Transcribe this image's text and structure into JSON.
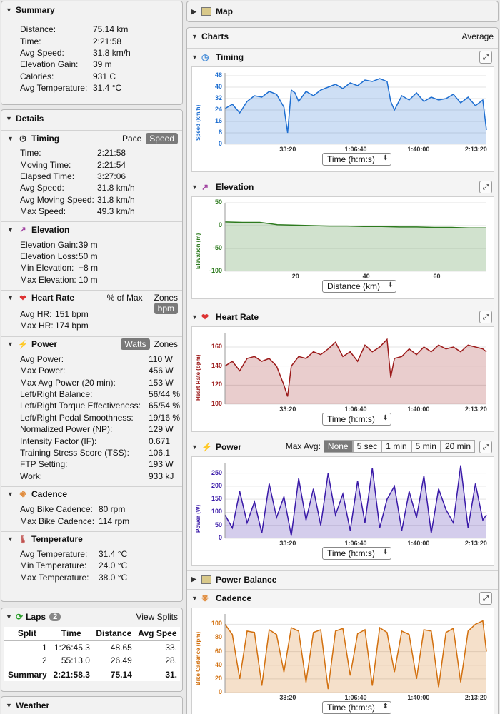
{
  "summary": {
    "title": "Summary",
    "rows": [
      [
        "Distance:",
        "75.14 km"
      ],
      [
        "Time:",
        "2:21:58"
      ],
      [
        "Avg Speed:",
        "31.8 km/h"
      ],
      [
        "Elevation Gain:",
        "39 m"
      ],
      [
        "Calories:",
        "931 C"
      ],
      [
        "Avg Temperature:",
        "31.4 °C"
      ]
    ]
  },
  "details": {
    "title": "Details",
    "timing": {
      "title": "Timing",
      "pace": "Pace",
      "speed": "Speed",
      "rows": [
        [
          "Time:",
          "2:21:58"
        ],
        [
          "Moving Time:",
          "2:21:54"
        ],
        [
          "Elapsed Time:",
          "3:27:06"
        ],
        [
          "Avg Speed:",
          "31.8 km/h"
        ],
        [
          "Avg Moving Speed:",
          "31.8 km/h"
        ],
        [
          "Max Speed:",
          "49.3 km/h"
        ]
      ]
    },
    "elevation": {
      "title": "Elevation",
      "rows": [
        [
          "Elevation Gain:",
          "39 m"
        ],
        [
          "Elevation Loss:",
          "50 m"
        ],
        [
          "Min Elevation:",
          "−8 m"
        ],
        [
          "Max Elevation:",
          "10 m"
        ]
      ]
    },
    "heart_rate": {
      "title": "Heart Rate",
      "pct": "% of Max",
      "zones": "Zones",
      "bpm": "bpm",
      "rows": [
        [
          "Avg HR:",
          "151 bpm"
        ],
        [
          "Max HR:",
          "174 bpm"
        ]
      ]
    },
    "power": {
      "title": "Power",
      "watts": "Watts",
      "zones": "Zones",
      "rows": [
        [
          "Avg Power:",
          "110 W"
        ],
        [
          "Max Power:",
          "456 W"
        ],
        [
          "Max Avg Power (20 min):",
          "153 W"
        ],
        [
          "Left/Right Balance:",
          "56/44 %"
        ],
        [
          "Left/Right Torque Effectiveness:",
          "65/54 %"
        ],
        [
          "Left/Right Pedal Smoothness:",
          "19/16 %"
        ],
        [
          "Normalized Power (NP):",
          "129 W"
        ],
        [
          "Intensity Factor (IF):",
          "0.671"
        ],
        [
          "Training Stress Score (TSS):",
          "106.1"
        ],
        [
          "FTP Setting:",
          "193 W"
        ],
        [
          "Work:",
          "933 kJ"
        ]
      ]
    },
    "cadence": {
      "title": "Cadence",
      "rows": [
        [
          "Avg Bike Cadence:",
          "80 rpm"
        ],
        [
          "Max Bike Cadence:",
          "114 rpm"
        ]
      ]
    },
    "temperature": {
      "title": "Temperature",
      "rows": [
        [
          "Avg Temperature:",
          "31.4 °C"
        ],
        [
          "Min Temperature:",
          "24.0 °C"
        ],
        [
          "Max Temperature:",
          "38.0 °C"
        ]
      ]
    }
  },
  "laps": {
    "title": "Laps",
    "count": "2",
    "view_splits": "View Splits",
    "headers": [
      "Split",
      "Time",
      "Distance",
      "Avg Spee"
    ],
    "rows": [
      [
        "1",
        "1:26:45.3",
        "48.65",
        "33."
      ],
      [
        "2",
        "55:13.0",
        "26.49",
        "28."
      ],
      [
        "Summary",
        "2:21:58.3",
        "75.14",
        "31."
      ]
    ]
  },
  "weather": {
    "title": "Weather"
  },
  "map": {
    "title": "Map"
  },
  "charts": {
    "title": "Charts",
    "average": "Average",
    "max_avg": "Max Avg:",
    "max_avg_options": [
      "None",
      "5 sec",
      "1 min",
      "5 min",
      "20 min"
    ],
    "power_balance": "Power Balance",
    "colors": {
      "speed": "#1f6fd1",
      "elevation": "#2d7a1e",
      "hr": "#9c1b1b",
      "power": "#3a1aa8",
      "cadence": "#d2700f"
    }
  },
  "chart_data": [
    {
      "type": "area",
      "title": "Timing",
      "ylabel": "Speed (km/h)",
      "xlabel": "Time (h:m:s)",
      "ylim": [
        0,
        50
      ],
      "yticks": [
        "48",
        "40",
        "32",
        "24",
        "16",
        "8",
        "0"
      ],
      "xticks": [
        "33:20",
        "1:06:40",
        "1:40:00",
        "2:13:20"
      ],
      "x": [
        0,
        240,
        480,
        720,
        960,
        1200,
        1440,
        1680,
        1920,
        2040,
        2160,
        2280,
        2400,
        2640,
        2880,
        3120,
        3360,
        3600,
        3840,
        4080,
        4320,
        4560,
        4800,
        5040,
        5280,
        5400,
        5520,
        5760,
        6000,
        6240,
        6480,
        6720,
        6960,
        7200,
        7440,
        7680,
        7920,
        8160,
        8400,
        8518
      ],
      "values": [
        25,
        28,
        22,
        30,
        34,
        33,
        37,
        35,
        26,
        8,
        38,
        36,
        30,
        37,
        34,
        38,
        40,
        42,
        39,
        43,
        41,
        45,
        44,
        46,
        44,
        30,
        24,
        34,
        31,
        36,
        30,
        33,
        31,
        32,
        35,
        29,
        33,
        27,
        31,
        10
      ]
    },
    {
      "type": "area",
      "title": "Elevation",
      "ylabel": "Elevation (m)",
      "xlabel": "Distance (km)",
      "ylim": [
        -100,
        50
      ],
      "yticks": [
        "50",
        "0",
        "-50",
        "-100"
      ],
      "xticks": [
        "20",
        "40",
        "60"
      ],
      "x": [
        0,
        5,
        10,
        15,
        20,
        25,
        30,
        35,
        40,
        45,
        50,
        55,
        60,
        65,
        70,
        75
      ],
      "values": [
        8,
        7,
        7,
        2,
        1,
        0,
        -1,
        -1,
        -2,
        -2,
        -3,
        -3,
        -4,
        -4,
        -5,
        -5
      ]
    },
    {
      "type": "area",
      "title": "Heart Rate",
      "ylabel": "Heart Rate (bpm)",
      "xlabel": "Time (h:m:s)",
      "ylim": [
        100,
        175
      ],
      "yticks": [
        "160",
        "140",
        "120",
        "100"
      ],
      "xticks": [
        "33:20",
        "1:06:40",
        "1:40:00",
        "2:13:20"
      ],
      "x": [
        0,
        240,
        480,
        720,
        960,
        1200,
        1440,
        1680,
        1920,
        2040,
        2160,
        2400,
        2640,
        2880,
        3120,
        3360,
        3600,
        3840,
        4080,
        4320,
        4560,
        4800,
        5040,
        5280,
        5400,
        5520,
        5760,
        6000,
        6240,
        6480,
        6720,
        6960,
        7200,
        7440,
        7680,
        7920,
        8160,
        8400,
        8518
      ],
      "values": [
        140,
        145,
        135,
        148,
        150,
        145,
        148,
        140,
        120,
        108,
        140,
        150,
        148,
        155,
        152,
        158,
        165,
        150,
        155,
        145,
        162,
        155,
        160,
        168,
        128,
        148,
        150,
        158,
        152,
        160,
        155,
        162,
        158,
        160,
        155,
        162,
        160,
        158,
        155
      ]
    },
    {
      "type": "area",
      "title": "Power",
      "ylabel": "Power (W)",
      "xlabel": "Time (h:m:s)",
      "ylim": [
        0,
        290
      ],
      "yticks": [
        "250",
        "200",
        "150",
        "100",
        "50",
        "0"
      ],
      "xticks": [
        "33:20",
        "1:06:40",
        "1:40:00",
        "2:13:20"
      ],
      "x": [
        0,
        240,
        480,
        720,
        960,
        1200,
        1440,
        1680,
        1920,
        2160,
        2400,
        2640,
        2880,
        3120,
        3360,
        3600,
        3840,
        4080,
        4320,
        4560,
        4800,
        5040,
        5280,
        5520,
        5760,
        6000,
        6240,
        6480,
        6720,
        6960,
        7200,
        7440,
        7680,
        7920,
        8160,
        8400,
        8518
      ],
      "values": [
        90,
        40,
        180,
        60,
        140,
        20,
        210,
        80,
        160,
        10,
        230,
        70,
        190,
        50,
        250,
        90,
        170,
        30,
        220,
        60,
        270,
        40,
        150,
        200,
        30,
        180,
        80,
        240,
        20,
        190,
        110,
        60,
        280,
        40,
        210,
        70,
        90
      ]
    },
    {
      "type": "area",
      "title": "Cadence",
      "ylabel": "Bike Cadence (rpm)",
      "xlabel": "Time (h:m:s)",
      "ylim": [
        0,
        115
      ],
      "yticks": [
        "100",
        "80",
        "60",
        "40",
        "20",
        "0"
      ],
      "xticks": [
        "33:20",
        "1:06:40",
        "1:40:00",
        "2:13:20"
      ],
      "x": [
        0,
        240,
        480,
        720,
        960,
        1200,
        1440,
        1680,
        1920,
        2160,
        2400,
        2640,
        2880,
        3120,
        3360,
        3600,
        3840,
        4080,
        4320,
        4560,
        4800,
        5040,
        5280,
        5520,
        5760,
        6000,
        6240,
        6480,
        6720,
        6960,
        7200,
        7440,
        7680,
        7920,
        8160,
        8400,
        8518
      ],
      "values": [
        100,
        85,
        20,
        90,
        88,
        10,
        92,
        85,
        30,
        95,
        90,
        15,
        88,
        92,
        5,
        90,
        94,
        25,
        86,
        92,
        10,
        95,
        88,
        30,
        90,
        85,
        20,
        92,
        90,
        8,
        88,
        94,
        15,
        90,
        100,
        105,
        60
      ]
    }
  ]
}
